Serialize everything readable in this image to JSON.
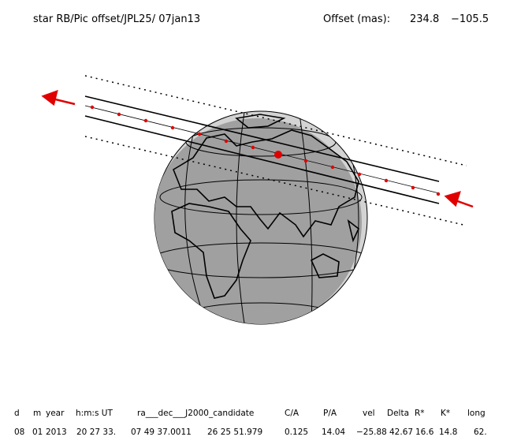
{
  "header": {
    "title": "star RB/Pic offset/JPL25/ 07jan13",
    "offset_label": "Offset (mas):",
    "offset_ra": "234.8",
    "offset_dec": "−105.5"
  },
  "table": {
    "columns": [
      "d",
      "m",
      "year",
      "h:m:s UT",
      "ra___dec___J2000_candidate",
      "C/A",
      "P/A",
      "vel",
      "Delta",
      "R*",
      "K*",
      "long"
    ],
    "rows": [
      [
        "08",
        "01",
        "2013",
        "20 27 33.",
        "07 49 37.0011",
        "26 25 51.979",
        "0.125",
        "14.04",
        "−25.88",
        "42.67",
        "16.6",
        "14.8",
        "62."
      ]
    ]
  }
}
